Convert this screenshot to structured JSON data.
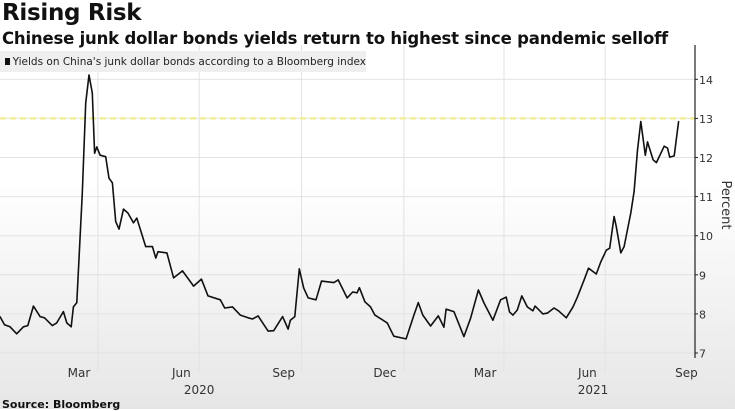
{
  "chart_data": {
    "type": "line",
    "title": "Rising Risk",
    "subtitle": "Chinese junk dollar bonds yields return to highest since pandemic selloff",
    "legend": "Yields on China's junk dollar bonds according to a Bloomberg index",
    "legend_placement": "top-left",
    "ylabel": "Percent",
    "xlabel": "",
    "ylim": [
      7,
      14
    ],
    "yticks": [
      7,
      8,
      9,
      10,
      11,
      12,
      13,
      14
    ],
    "xlim": [
      "2020-01-04",
      "2021-09-17"
    ],
    "month_labels": [
      {
        "label": "Mar",
        "date": "2020-03-15"
      },
      {
        "label": "Jun",
        "date": "2020-06-15"
      },
      {
        "label": "Sep",
        "date": "2020-09-15"
      },
      {
        "label": "Dec",
        "date": "2020-12-15"
      },
      {
        "label": "Mar",
        "date": "2021-03-15"
      },
      {
        "label": "Jun",
        "date": "2021-06-15"
      },
      {
        "label": "Sep",
        "date": "2021-09-12"
      }
    ],
    "year_labels": [
      {
        "label": "2020",
        "date": "2020-07-01"
      },
      {
        "label": "2021",
        "date": "2021-06-20"
      }
    ],
    "gridline_dates": [
      "2020-04-01",
      "2020-07-01",
      "2020-10-01",
      "2021-01-01",
      "2021-04-01",
      "2021-07-01"
    ],
    "reference_line": 13,
    "grid": true,
    "series": [
      {
        "name": "Yields on China's junk dollar bonds according to a Bloomberg index",
        "color": "#111111",
        "points": [
          [
            "2020-01-04",
            7.93
          ],
          [
            "2020-01-08",
            7.72
          ],
          [
            "2020-01-13",
            7.67
          ],
          [
            "2020-01-19",
            7.49
          ],
          [
            "2020-01-25",
            7.67
          ],
          [
            "2020-01-29",
            7.7
          ],
          [
            "2020-02-03",
            8.2
          ],
          [
            "2020-02-09",
            7.93
          ],
          [
            "2020-02-13",
            7.9
          ],
          [
            "2020-02-20",
            7.7
          ],
          [
            "2020-02-24",
            7.77
          ],
          [
            "2020-03-01",
            8.06
          ],
          [
            "2020-03-04",
            7.77
          ],
          [
            "2020-03-08",
            7.67
          ],
          [
            "2020-03-10",
            8.18
          ],
          [
            "2020-03-13",
            8.29
          ],
          [
            "2020-03-18",
            11.09
          ],
          [
            "2020-03-21",
            13.39
          ],
          [
            "2020-03-24",
            14.11
          ],
          [
            "2020-03-27",
            13.65
          ],
          [
            "2020-03-29",
            12.11
          ],
          [
            "2020-03-31",
            12.27
          ],
          [
            "2020-04-03",
            12.06
          ],
          [
            "2020-04-08",
            12.02
          ],
          [
            "2020-04-11",
            11.47
          ],
          [
            "2020-04-14",
            11.35
          ],
          [
            "2020-04-17",
            10.36
          ],
          [
            "2020-04-20",
            10.17
          ],
          [
            "2020-04-24",
            10.68
          ],
          [
            "2020-04-28",
            10.58
          ],
          [
            "2020-05-03",
            10.33
          ],
          [
            "2020-05-06",
            10.45
          ],
          [
            "2020-05-14",
            9.72
          ],
          [
            "2020-05-20",
            9.72
          ],
          [
            "2020-05-23",
            9.43
          ],
          [
            "2020-05-25",
            9.59
          ],
          [
            "2020-06-02",
            9.56
          ],
          [
            "2020-06-08",
            8.92
          ],
          [
            "2020-06-16",
            9.1
          ],
          [
            "2020-06-26",
            8.71
          ],
          [
            "2020-07-03",
            8.89
          ],
          [
            "2020-07-09",
            8.46
          ],
          [
            "2020-07-20",
            8.36
          ],
          [
            "2020-07-24",
            8.15
          ],
          [
            "2020-07-31",
            8.18
          ],
          [
            "2020-08-07",
            7.97
          ],
          [
            "2020-08-14",
            7.9
          ],
          [
            "2020-08-18",
            7.87
          ],
          [
            "2020-08-23",
            7.95
          ],
          [
            "2020-09-01",
            7.56
          ],
          [
            "2020-09-06",
            7.57
          ],
          [
            "2020-09-14",
            7.93
          ],
          [
            "2020-09-19",
            7.61
          ],
          [
            "2020-09-21",
            7.84
          ],
          [
            "2020-09-25",
            7.93
          ],
          [
            "2020-09-29",
            9.15
          ],
          [
            "2020-10-03",
            8.66
          ],
          [
            "2020-10-07",
            8.41
          ],
          [
            "2020-10-14",
            8.36
          ],
          [
            "2020-10-19",
            8.84
          ],
          [
            "2020-10-30",
            8.8
          ],
          [
            "2020-11-03",
            8.87
          ],
          [
            "2020-11-11",
            8.41
          ],
          [
            "2020-11-16",
            8.56
          ],
          [
            "2020-11-20",
            8.54
          ],
          [
            "2020-11-22",
            8.67
          ],
          [
            "2020-11-27",
            8.31
          ],
          [
            "2020-12-02",
            8.18
          ],
          [
            "2020-12-06",
            7.97
          ],
          [
            "2020-12-17",
            7.77
          ],
          [
            "2020-12-23",
            7.43
          ],
          [
            "2021-01-03",
            7.36
          ],
          [
            "2021-01-10",
            7.97
          ],
          [
            "2021-01-14",
            8.29
          ],
          [
            "2021-01-18",
            7.97
          ],
          [
            "2021-01-25",
            7.69
          ],
          [
            "2021-02-01",
            7.95
          ],
          [
            "2021-02-06",
            7.66
          ],
          [
            "2021-02-08",
            8.12
          ],
          [
            "2021-02-15",
            8.06
          ],
          [
            "2021-02-24",
            7.42
          ],
          [
            "2021-03-02",
            7.89
          ],
          [
            "2021-03-09",
            8.61
          ],
          [
            "2021-03-14",
            8.28
          ],
          [
            "2021-03-22",
            7.84
          ],
          [
            "2021-03-29",
            8.36
          ],
          [
            "2021-04-03",
            8.43
          ],
          [
            "2021-04-06",
            8.05
          ],
          [
            "2021-04-09",
            7.97
          ],
          [
            "2021-04-13",
            8.1
          ],
          [
            "2021-04-17",
            8.46
          ],
          [
            "2021-04-22",
            8.18
          ],
          [
            "2021-04-27",
            8.08
          ],
          [
            "2021-04-29",
            8.2
          ],
          [
            "2021-05-06",
            8.0
          ],
          [
            "2021-05-10",
            8.02
          ],
          [
            "2021-05-16",
            8.15
          ],
          [
            "2021-05-20",
            8.08
          ],
          [
            "2021-05-27",
            7.9
          ],
          [
            "2021-06-02",
            8.18
          ],
          [
            "2021-06-06",
            8.43
          ],
          [
            "2021-06-12",
            8.87
          ],
          [
            "2021-06-16",
            9.17
          ],
          [
            "2021-06-23",
            9.02
          ],
          [
            "2021-06-27",
            9.33
          ],
          [
            "2021-07-02",
            9.63
          ],
          [
            "2021-07-05",
            9.68
          ],
          [
            "2021-07-09",
            10.49
          ],
          [
            "2021-07-11",
            10.23
          ],
          [
            "2021-07-15",
            9.56
          ],
          [
            "2021-07-18",
            9.72
          ],
          [
            "2021-07-24",
            10.58
          ],
          [
            "2021-07-27",
            11.13
          ],
          [
            "2021-07-30",
            12.19
          ],
          [
            "2021-08-02",
            12.92
          ],
          [
            "2021-08-06",
            12.06
          ],
          [
            "2021-08-08",
            12.4
          ],
          [
            "2021-08-13",
            11.94
          ],
          [
            "2021-08-16",
            11.87
          ],
          [
            "2021-08-23",
            12.29
          ],
          [
            "2021-08-26",
            12.24
          ],
          [
            "2021-08-28",
            12.01
          ],
          [
            "2021-09-01",
            12.04
          ],
          [
            "2021-09-05",
            12.92
          ]
        ]
      }
    ],
    "source": "Source: Bloomberg"
  }
}
